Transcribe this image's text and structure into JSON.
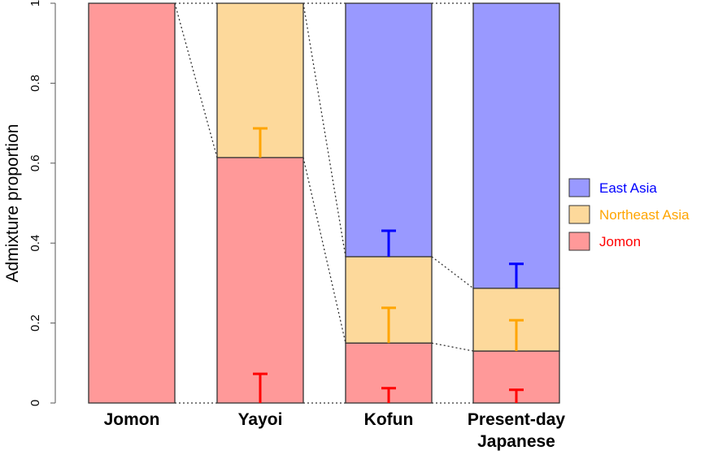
{
  "chart_data": {
    "type": "bar",
    "stacked": true,
    "title": "",
    "xlabel": "",
    "ylabel": "Admixture proportion",
    "ylim": [
      0,
      1
    ],
    "yticks": [
      "0",
      "0.2",
      "0.4",
      "0.6",
      "0.8",
      "1"
    ],
    "categories": [
      "Jomon",
      "Yayoi",
      "Kofun",
      "Present-day Japanese"
    ],
    "category_lines": [
      [
        "Jomon"
      ],
      [
        "Yayoi"
      ],
      [
        "Kofun"
      ],
      [
        "Present-day",
        "Japanese"
      ]
    ],
    "legend_position": "right",
    "series": [
      {
        "name": "Jomon",
        "color": "#ff9999",
        "error_color": "#ff0000",
        "values": [
          1.0,
          0.614,
          0.15,
          0.13
        ],
        "error_upper": [
          null,
          0.073,
          0.037,
          0.033
        ]
      },
      {
        "name": "Northeast Asia",
        "color": "#fdd99b",
        "error_color": "#ffa500",
        "values": [
          0,
          0.386,
          0.216,
          0.157
        ],
        "error_upper": [
          null,
          0.687,
          0.238,
          0.207
        ]
      },
      {
        "name": "East Asia",
        "color": "#9999ff",
        "error_color": "#0000ff",
        "values": [
          0,
          0,
          0.634,
          0.713
        ],
        "error_upper": [
          null,
          null,
          0.431,
          0.348
        ]
      }
    ],
    "legend": [
      {
        "label": "East Asia",
        "color": "#9999ff",
        "text_color": "#0000ff"
      },
      {
        "label": "Northeast Asia",
        "color": "#fdd99b",
        "text_color": "#ffa500"
      },
      {
        "label": "Jomon",
        "color": "#ff9999",
        "text_color": "#ff0000"
      }
    ],
    "connector_lines": "dotted"
  }
}
